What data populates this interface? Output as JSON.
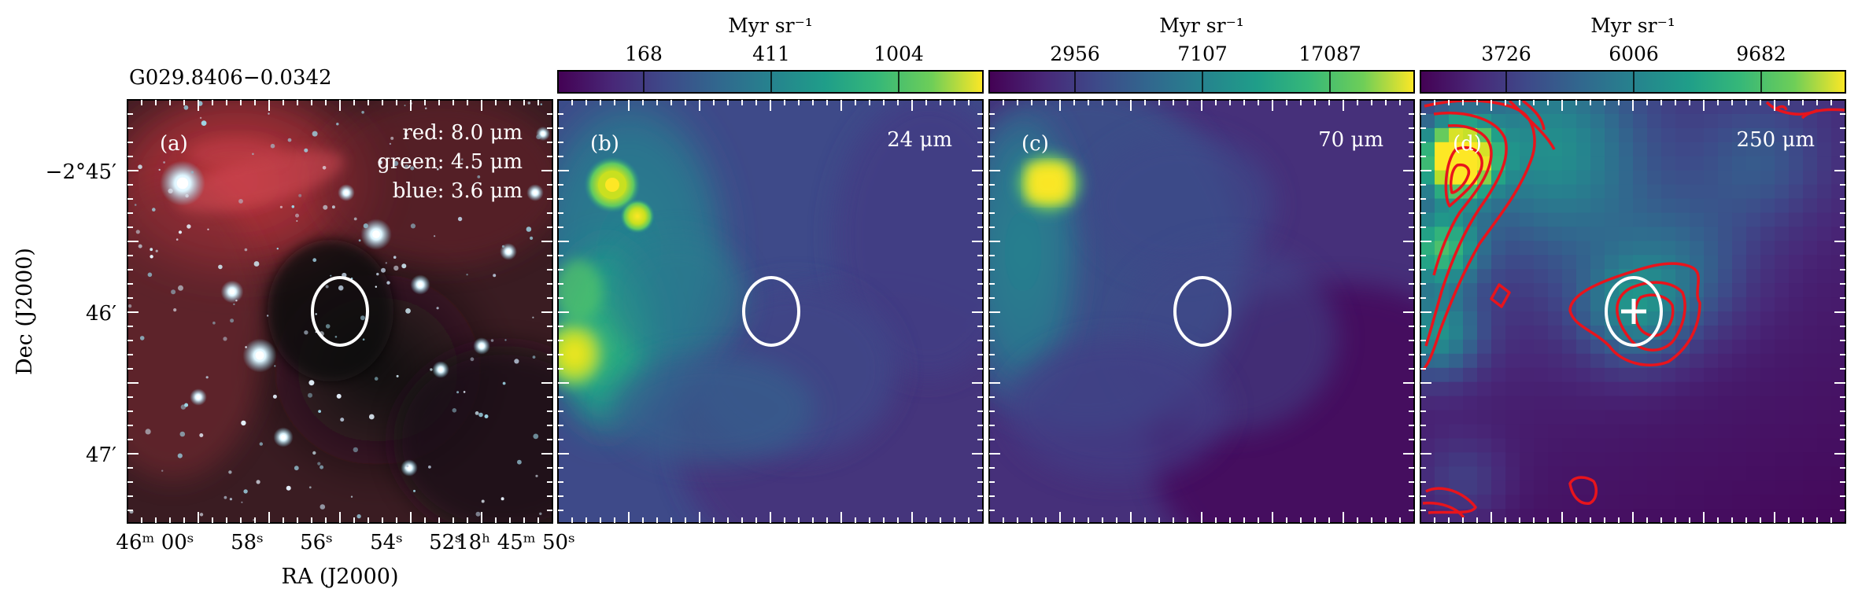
{
  "source_title": "G029.8406−0.0342",
  "axes": {
    "ylabel": "Dec (J2000)",
    "xlabel": "RA (J2000)",
    "yticks": [
      "−2°45′",
      "46′",
      "47′"
    ],
    "xticks": [
      "46ᵐ 00ˢ",
      "58ˢ",
      "56ˢ",
      "54ˢ",
      "52ˢ",
      "18ʰ 45ᵐ 50ˢ"
    ]
  },
  "panels": [
    {
      "id": "a",
      "label": "(a)",
      "legend": [
        "red: 8.0 μm",
        "green: 4.5 μm",
        "blue: 3.6 μm"
      ],
      "image": "rgb-composite"
    },
    {
      "id": "b",
      "label": "(b)",
      "wavelength": "24 μm",
      "colorbar": {
        "unit": "Myr sr⁻¹",
        "ticks": [
          "168",
          "411",
          "1004"
        ]
      },
      "image": "viridis-map"
    },
    {
      "id": "c",
      "label": "(c)",
      "wavelength": "70 μm",
      "colorbar": {
        "unit": "Myr sr⁻¹",
        "ticks": [
          "2956",
          "7107",
          "17087"
        ]
      },
      "image": "viridis-map"
    },
    {
      "id": "d",
      "label": "(d)",
      "wavelength": "250 μm",
      "colorbar": {
        "unit": "Myr sr⁻¹",
        "ticks": [
          "3726",
          "6006",
          "9682"
        ]
      },
      "image": "viridis-map",
      "overlay": [
        "red-contours",
        "plus-marker"
      ]
    }
  ],
  "colors": {
    "ellipse": "#ffffff",
    "contour": "#e8141c",
    "viridis_low": "#440154",
    "viridis_mid": "#21918c",
    "viridis_high": "#fde725"
  }
}
